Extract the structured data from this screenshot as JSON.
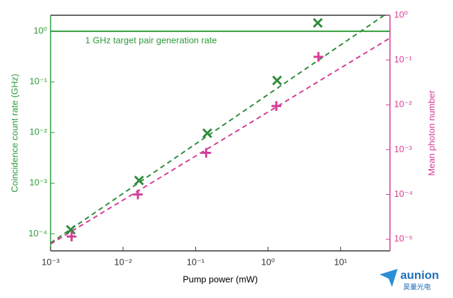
{
  "chart_data": {
    "type": "scatter",
    "x_label": "Pump power (mW)",
    "y_label": "Coincidence count rate (GHz)",
    "y2_label": "Mean photon number",
    "log": {
      "x": true,
      "y": true,
      "y2": true
    },
    "xlim": [
      0.001,
      48
    ],
    "ylim": [
      4.6e-05,
      2.07
    ],
    "y2lim": [
      5.5e-06,
      1
    ],
    "xticks": [
      {
        "value": 0.001,
        "label": "10⁻³"
      },
      {
        "value": 0.01,
        "label": "10⁻²"
      },
      {
        "value": 0.1,
        "label": "10⁻¹"
      },
      {
        "value": 1,
        "label": "10⁰"
      },
      {
        "value": 10,
        "label": "10¹"
      }
    ],
    "yticks": [
      {
        "value": 0.0001,
        "label": "10⁻⁴"
      },
      {
        "value": 0.001,
        "label": "10⁻³"
      },
      {
        "value": 0.01,
        "label": "10⁻²"
      },
      {
        "value": 0.1,
        "label": "10⁻¹"
      },
      {
        "value": 1,
        "label": "10⁰"
      }
    ],
    "y2ticks": [
      {
        "value": 1e-05,
        "label": "10⁻⁵"
      },
      {
        "value": 0.0001,
        "label": "10⁻⁴"
      },
      {
        "value": 0.001,
        "label": "10⁻³"
      },
      {
        "value": 0.01,
        "label": "10⁻²"
      },
      {
        "value": 0.1,
        "label": "10⁻¹"
      },
      {
        "value": 1,
        "label": "10⁰"
      }
    ],
    "y_color": "#2e9b3a",
    "y2_color": "#d43c96",
    "series": [
      {
        "marker": "x",
        "color": "#2e8b3a",
        "x": [
          0.0019,
          0.0166,
          0.145,
          1.33,
          4.85
        ],
        "values": [
          0.00012,
          0.00113,
          0.0097,
          0.107,
          1.46
        ]
      },
      {
        "marker": "+",
        "color": "#d43c96",
        "axis": "y2",
        "x": [
          0.00195,
          0.016,
          0.14,
          1.3,
          4.95
        ],
        "values": [
          1.15e-05,
          0.0001,
          0.00085,
          0.0094,
          0.118
        ]
      }
    ],
    "fit_lines": [
      {
        "color": "#2e8b3a",
        "dashed": true,
        "x": [
          0.001,
          40
        ],
        "values": [
          6.6e-05,
          2.07
        ]
      },
      {
        "color": "#d43c96",
        "dashed": true,
        "axis": "y2",
        "x": [
          0.001,
          48
        ],
        "values": [
          7.8e-06,
          0.31
        ]
      }
    ],
    "reference_line": {
      "value": 1,
      "color": "#2e9b3a",
      "label": "1 GHz target pair generation rate"
    }
  },
  "watermark": {
    "name": "aunion",
    "subtitle": "昊量光电"
  }
}
